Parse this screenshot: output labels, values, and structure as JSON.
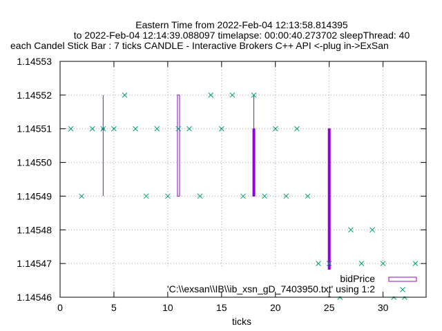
{
  "chart_data": {
    "type": "scatter",
    "title_lines": [
      "Eastern Time from 2022-Feb-04 12:13:58.814395",
      "to 2022-Feb-04 12:14:39.088097 timelapse: 00:00:40.273702  sleepThread: 40",
      "each Candel Stick Bar : 7 ticks CANDLE - Interactive Brokers C++ API <-plug in->ExSan"
    ],
    "xlabel": "ticks",
    "ylabel": "",
    "xlim": [
      0,
      34
    ],
    "ylim": [
      1.14546,
      1.14553
    ],
    "x_ticks": [
      0,
      5,
      10,
      15,
      20,
      25,
      30
    ],
    "y_ticks": [
      1.14546,
      1.14547,
      1.14548,
      1.14549,
      1.1455,
      1.14551,
      1.14552,
      1.14553
    ],
    "y_tick_labels": [
      "1.14546",
      "1.14547",
      "1.14548",
      "1.14549",
      "1.14550",
      "1.14551",
      "1.14552",
      "1.14553"
    ],
    "grid": true,
    "legend_position": "bottom-right",
    "series": [
      {
        "name": "bidPrice",
        "type": "candlestick",
        "color": "#9400d3",
        "candles": [
          {
            "x": 4,
            "open": 1.14551,
            "high": 1.14552,
            "low": 1.14549,
            "close": 1.14551
          },
          {
            "x": 11,
            "open": 1.14549,
            "high": 1.14552,
            "low": 1.14549,
            "close": 1.14552
          },
          {
            "x": 18,
            "open": 1.14551,
            "high": 1.14552,
            "low": 1.14549,
            "close": 1.14549
          },
          {
            "x": 25,
            "open": 1.14551,
            "high": 1.14551,
            "low": 1.14546,
            "close": 1.14546
          }
        ]
      },
      {
        "name": "'C:\\\\exsan\\\\IB\\\\ib_xsn_gD_7403950.txt' using 1:2",
        "type": "scatter",
        "marker": "x",
        "color": "#009e73",
        "points": [
          [
            1,
            1.14551
          ],
          [
            2,
            1.14549
          ],
          [
            3,
            1.14551
          ],
          [
            4,
            1.14551
          ],
          [
            5,
            1.14551
          ],
          [
            6,
            1.14552
          ],
          [
            7,
            1.14551
          ],
          [
            8,
            1.14549
          ],
          [
            9,
            1.14551
          ],
          [
            10,
            1.14549
          ],
          [
            11,
            1.14551
          ],
          [
            12,
            1.14551
          ],
          [
            13,
            1.14549
          ],
          [
            14,
            1.14552
          ],
          [
            15,
            1.14551
          ],
          [
            16,
            1.14552
          ],
          [
            17,
            1.14549
          ],
          [
            18,
            1.14552
          ],
          [
            19,
            1.14549
          ],
          [
            20,
            1.14551
          ],
          [
            21,
            1.14549
          ],
          [
            22,
            1.14551
          ],
          [
            23,
            1.14549
          ],
          [
            24,
            1.14547
          ],
          [
            25,
            1.14547
          ],
          [
            26,
            1.14546
          ],
          [
            27,
            1.14548
          ],
          [
            28,
            1.14547
          ],
          [
            29,
            1.14548
          ],
          [
            30,
            1.14547
          ],
          [
            31,
            1.14546
          ],
          [
            32,
            1.14546
          ],
          [
            33,
            1.14547
          ]
        ]
      }
    ]
  }
}
